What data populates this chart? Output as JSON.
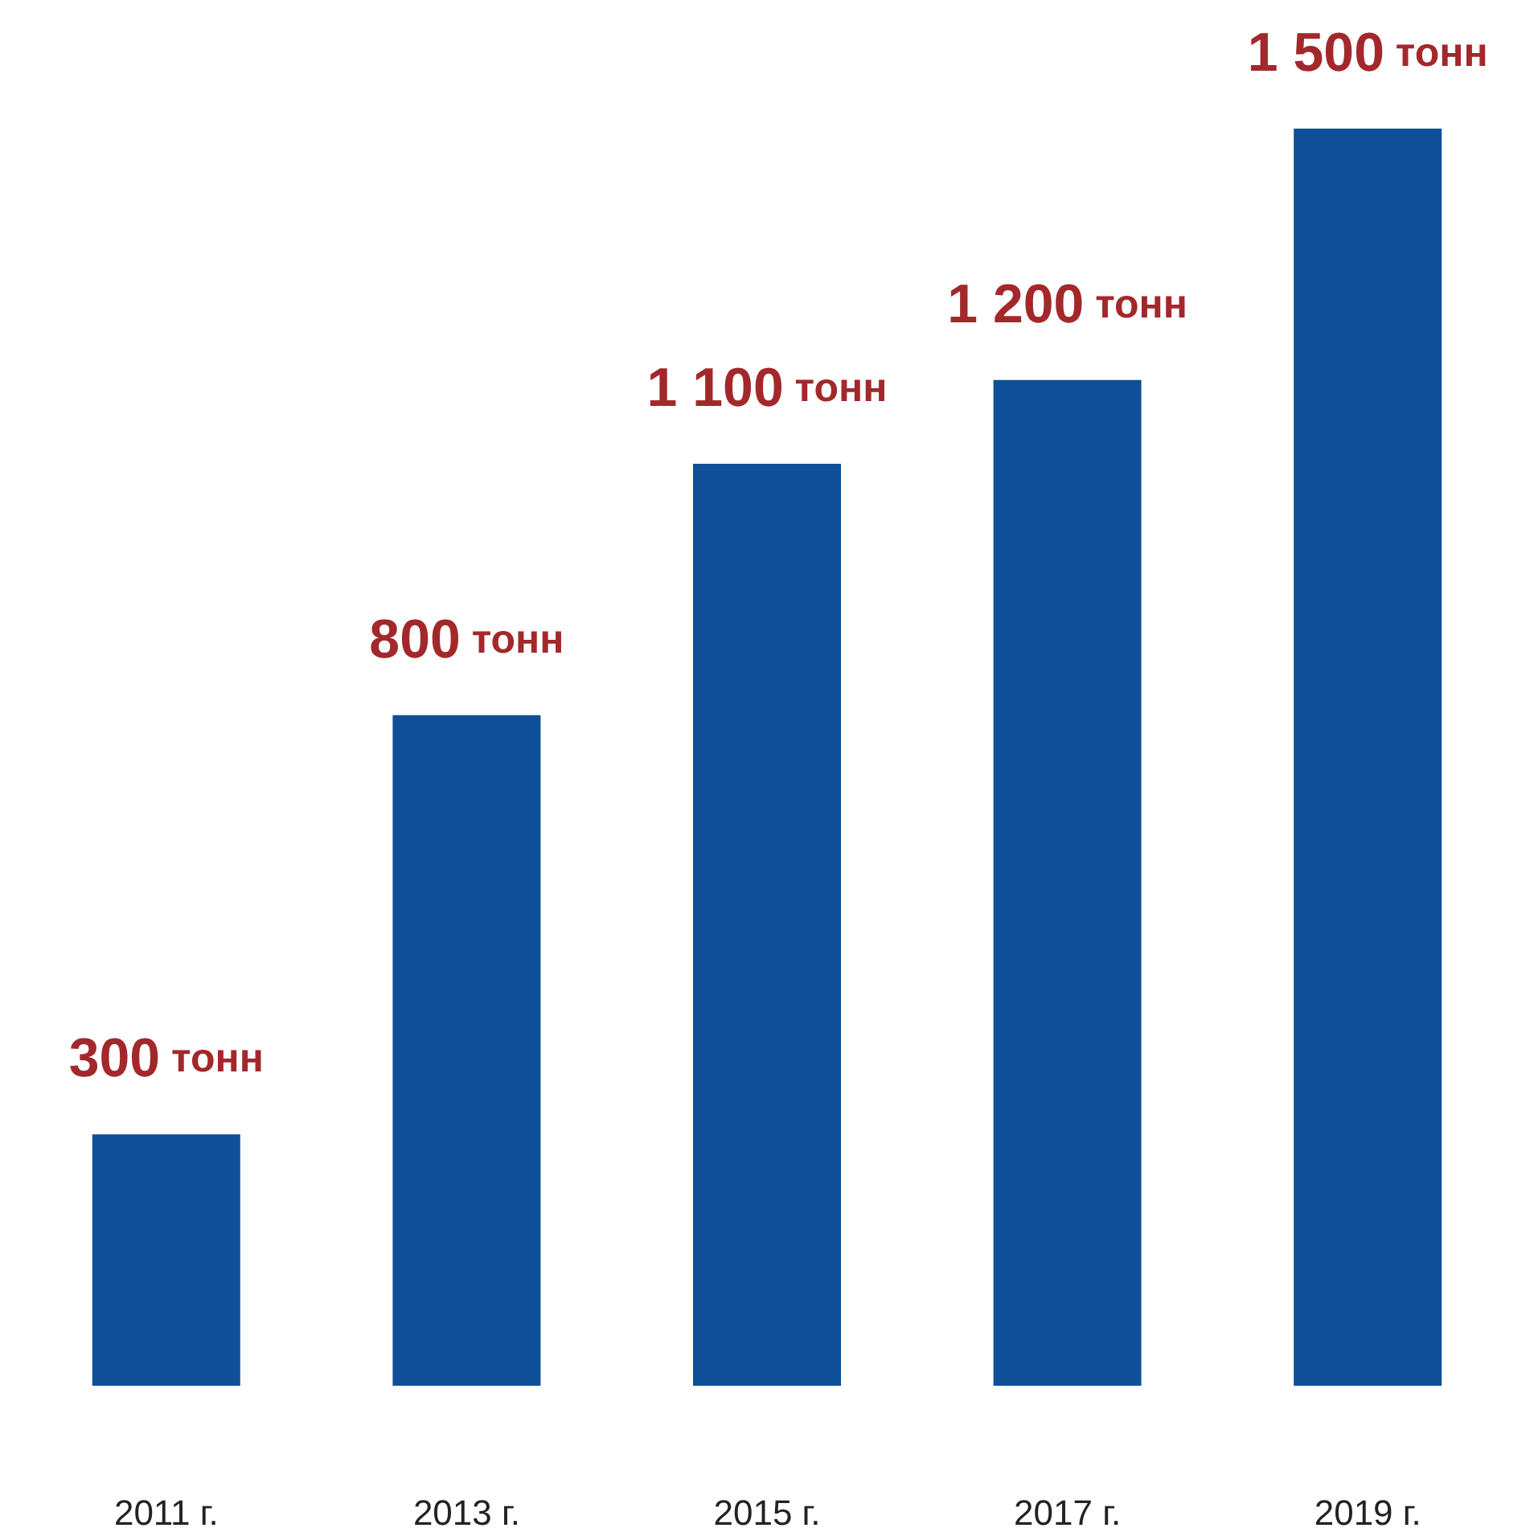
{
  "chart_data": {
    "type": "bar",
    "categories": [
      "2011 г.",
      "2013 г.",
      "2015 г.",
      "2017 г.",
      "2019 г."
    ],
    "values": [
      300,
      800,
      1100,
      1200,
      1500
    ],
    "value_labels": [
      "300 тонн",
      "800 тонн",
      "1 100 тонн",
      "1 200 тонн",
      "1 500 тонн"
    ],
    "color": "#0f4f98",
    "grid": false
  }
}
